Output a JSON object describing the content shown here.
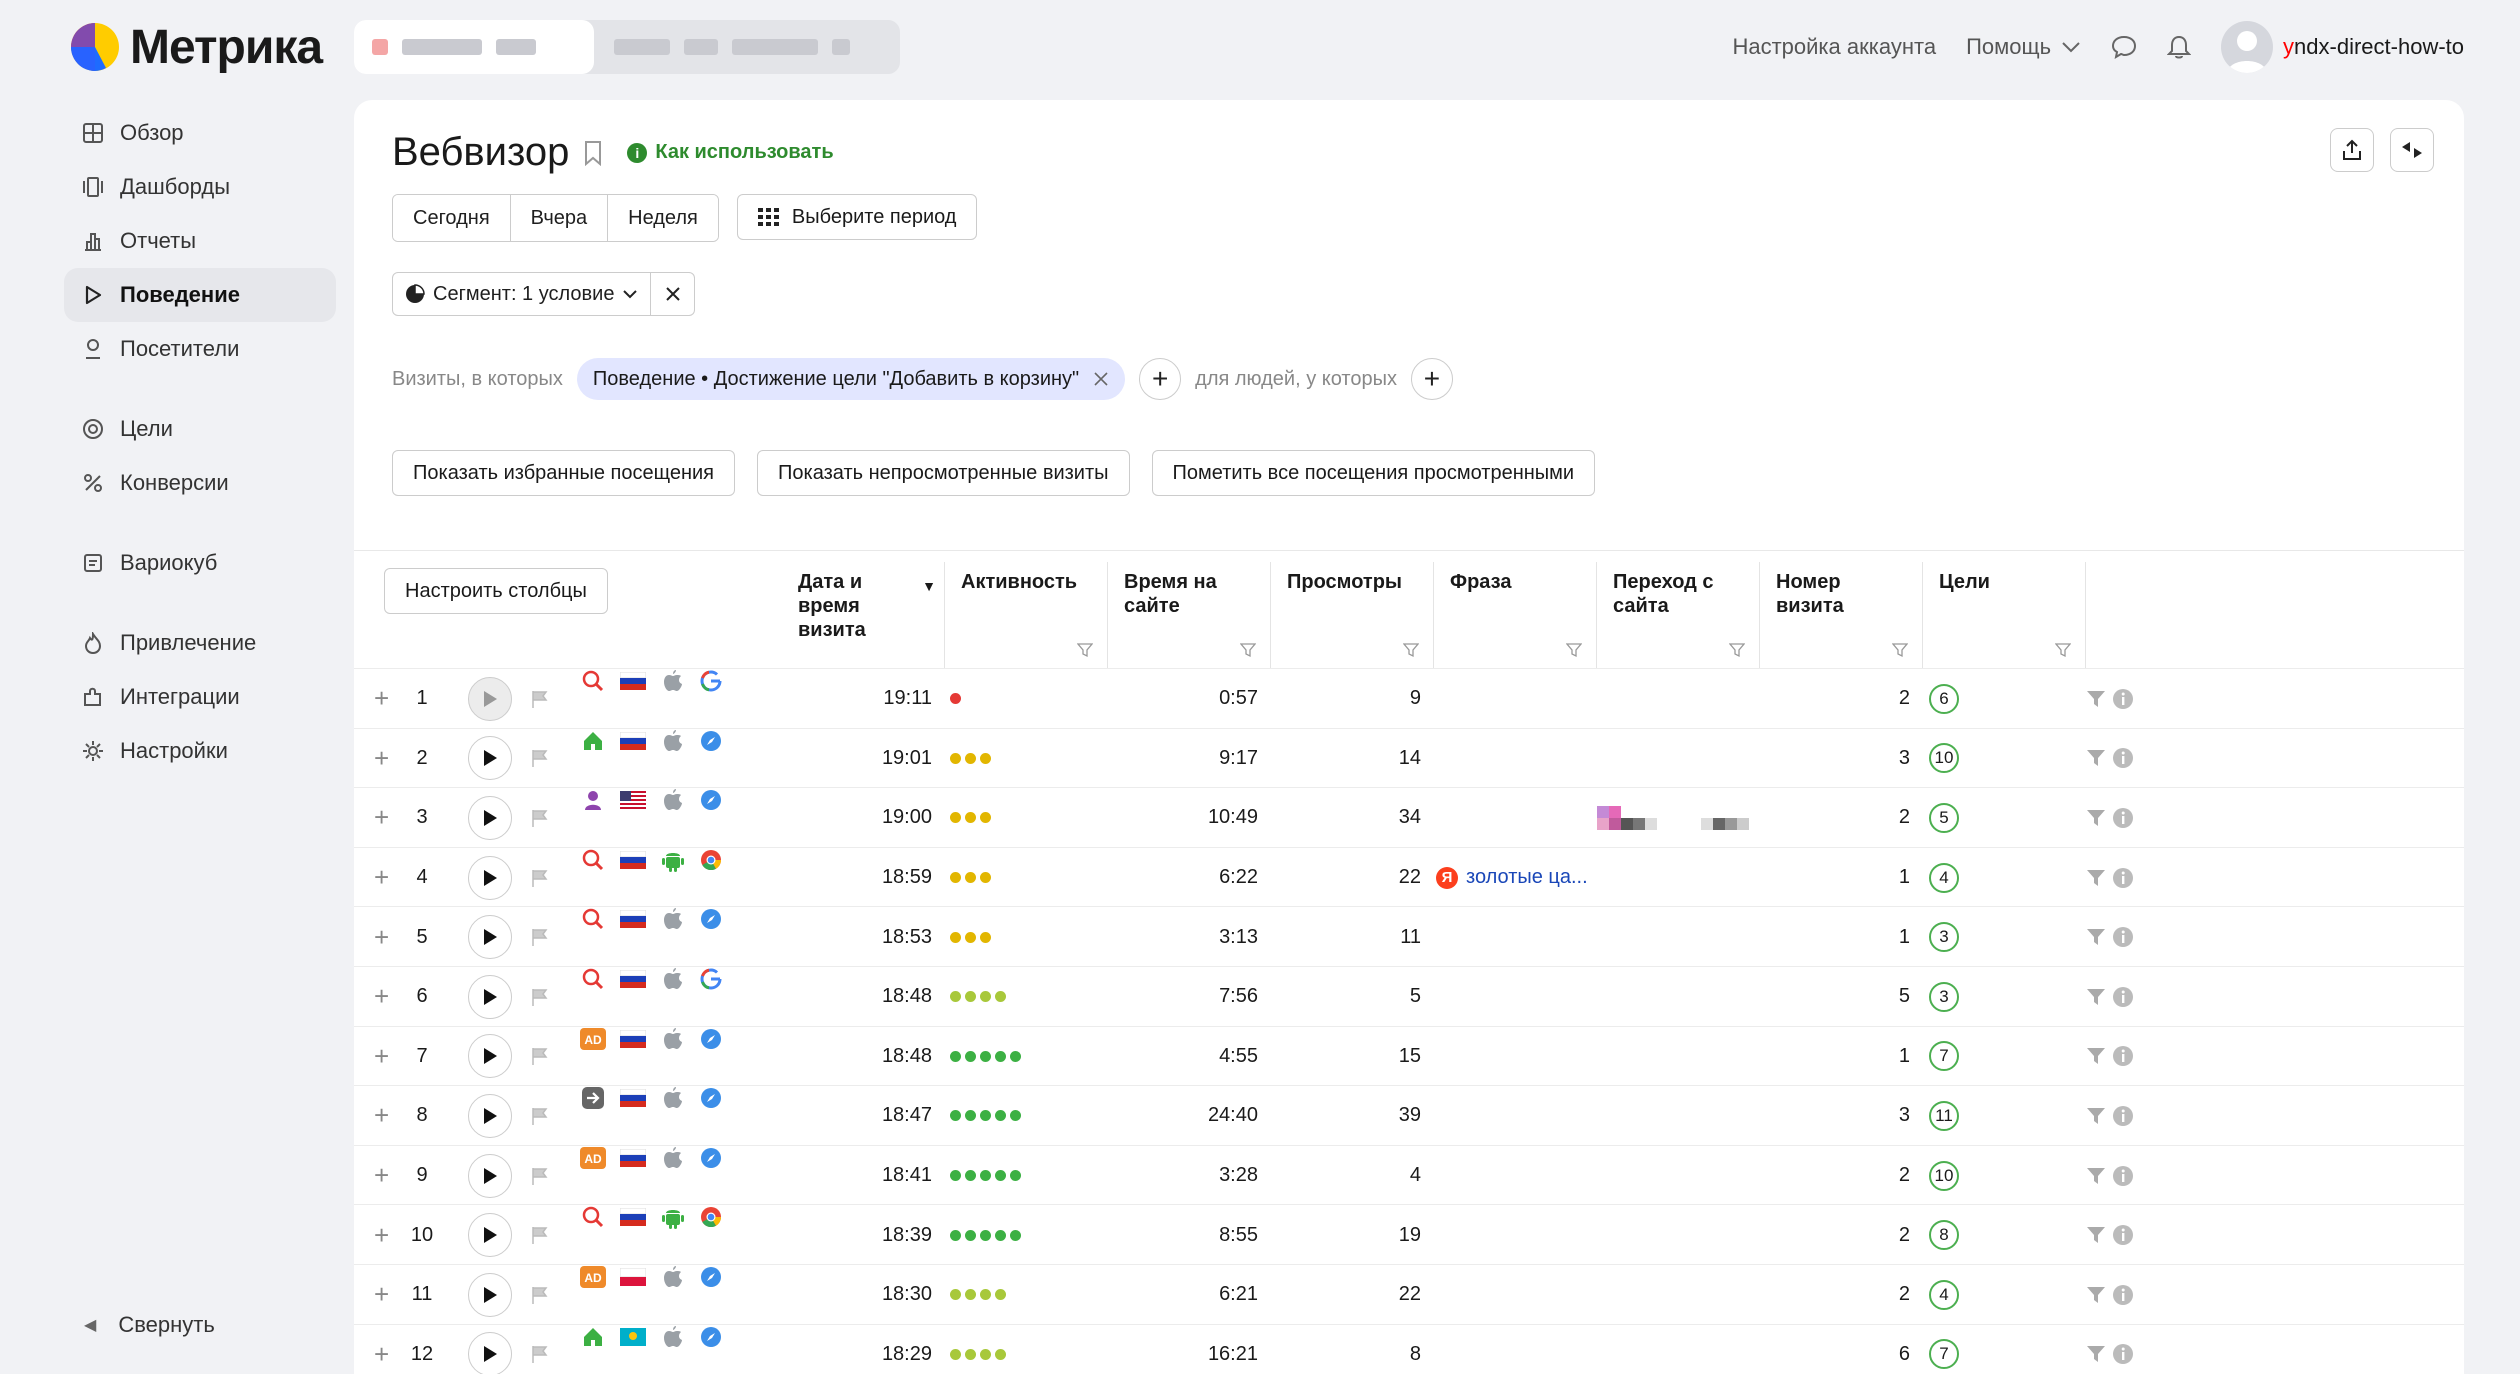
{
  "app": {
    "logo_text": "Метрика"
  },
  "topnav": {
    "account_settings": "Настройка аккаунта",
    "help": "Помощь",
    "username_first": "y",
    "username_rest": "ndx-direct-how-to"
  },
  "sidebar": {
    "items": [
      {
        "label": "Обзор",
        "icon": "grid-icon"
      },
      {
        "label": "Дашборды",
        "icon": "dashboards-icon"
      },
      {
        "label": "Отчеты",
        "icon": "reports-icon"
      },
      {
        "label": "Поведение",
        "icon": "play-icon",
        "active": true
      },
      {
        "label": "Посетители",
        "icon": "user-icon"
      },
      {
        "label": "Цели",
        "icon": "target-icon"
      },
      {
        "label": "Конверсии",
        "icon": "percent-icon"
      },
      {
        "label": "Вариокуб",
        "icon": "cube-icon"
      },
      {
        "label": "Привлечение",
        "icon": "fire-icon"
      },
      {
        "label": "Интеграции",
        "icon": "puzzle-icon"
      },
      {
        "label": "Настройки",
        "icon": "gear-icon"
      }
    ],
    "collapse": "Свернуть"
  },
  "page": {
    "title": "Вебвизор",
    "howto": "Как использовать",
    "periods": [
      "Сегодня",
      "Вчера",
      "Неделя"
    ],
    "choose_period": "Выберите период",
    "segment": "Сегмент: 1 условие",
    "visits_where": "Визиты, в которых",
    "condition_chip": "Поведение • Достижение цели \"Добавить в корзину\"",
    "for_people": "для людей, у которых",
    "actions": [
      "Показать избранные посещения",
      "Показать непросмотренные визиты",
      "Пометить все посещения просмотренными"
    ],
    "configure_columns": "Настроить столбцы"
  },
  "table": {
    "columns": [
      "Дата и время визита",
      "Активность",
      "Время на сайте",
      "Просмотры",
      "Фраза",
      "Переход с сайта",
      "Номер визита",
      "Цели"
    ],
    "rows": [
      {
        "n": "1",
        "time": "19:11",
        "activity": 1,
        "dur": "0:57",
        "views": "9",
        "phrase": "",
        "visit": "2",
        "goals": "6",
        "src": "search",
        "flag": "ru",
        "os": "apple",
        "br": "google",
        "red": true
      },
      {
        "n": "2",
        "time": "19:01",
        "activity": 3,
        "dur": "9:17",
        "views": "14",
        "phrase": "",
        "visit": "3",
        "goals": "10",
        "src": "home",
        "flag": "ru",
        "os": "apple",
        "br": "safari"
      },
      {
        "n": "3",
        "time": "19:00",
        "activity": 3,
        "dur": "10:49",
        "views": "34",
        "phrase": "",
        "visit": "2",
        "goals": "5",
        "src": "user",
        "flag": "us",
        "os": "apple",
        "br": "safari",
        "referrer_blurred": true
      },
      {
        "n": "4",
        "time": "18:59",
        "activity": 3,
        "dur": "6:22",
        "views": "22",
        "phrase": "золотые ца...",
        "visit": "1",
        "goals": "4",
        "src": "search",
        "flag": "ru",
        "os": "android",
        "br": "chrome"
      },
      {
        "n": "5",
        "time": "18:53",
        "activity": 3,
        "dur": "3:13",
        "views": "11",
        "phrase": "",
        "visit": "1",
        "goals": "3",
        "src": "search",
        "flag": "ru",
        "os": "apple",
        "br": "safari"
      },
      {
        "n": "6",
        "time": "18:48",
        "activity": 4,
        "dur": "7:56",
        "views": "5",
        "phrase": "",
        "visit": "5",
        "goals": "3",
        "src": "search",
        "flag": "ru",
        "os": "apple",
        "br": "google"
      },
      {
        "n": "7",
        "time": "18:48",
        "activity": 5,
        "dur": "4:55",
        "views": "15",
        "phrase": "",
        "visit": "1",
        "goals": "7",
        "src": "ad",
        "flag": "ru",
        "os": "apple",
        "br": "safari"
      },
      {
        "n": "8",
        "time": "18:47",
        "activity": 5,
        "dur": "24:40",
        "views": "39",
        "phrase": "",
        "visit": "3",
        "goals": "11",
        "src": "direct",
        "flag": "ru",
        "os": "apple",
        "br": "safari"
      },
      {
        "n": "9",
        "time": "18:41",
        "activity": 5,
        "dur": "3:28",
        "views": "4",
        "phrase": "",
        "visit": "2",
        "goals": "10",
        "src": "ad",
        "flag": "ru",
        "os": "apple",
        "br": "safari"
      },
      {
        "n": "10",
        "time": "18:39",
        "activity": 5,
        "dur": "8:55",
        "views": "19",
        "phrase": "",
        "visit": "2",
        "goals": "8",
        "src": "search",
        "flag": "ru",
        "os": "android",
        "br": "chrome"
      },
      {
        "n": "11",
        "time": "18:30",
        "activity": 4,
        "dur": "6:21",
        "views": "22",
        "phrase": "",
        "visit": "2",
        "goals": "4",
        "src": "ad",
        "flag": "pl",
        "os": "apple",
        "br": "safari"
      },
      {
        "n": "12",
        "time": "18:29",
        "activity": 4,
        "dur": "16:21",
        "views": "8",
        "phrase": "",
        "visit": "6",
        "goals": "7",
        "src": "home",
        "flag": "kz",
        "os": "apple",
        "br": "safari"
      }
    ]
  },
  "colors": {
    "accent_green": "#2e8b2e",
    "goal_border": "#4caf50",
    "activity_yellow": "#e2b600",
    "activity_green": "#3cb043",
    "activity_lime": "#a8c83a",
    "activity_red": "#e53935",
    "chip_bg": "#e2e6ff"
  }
}
